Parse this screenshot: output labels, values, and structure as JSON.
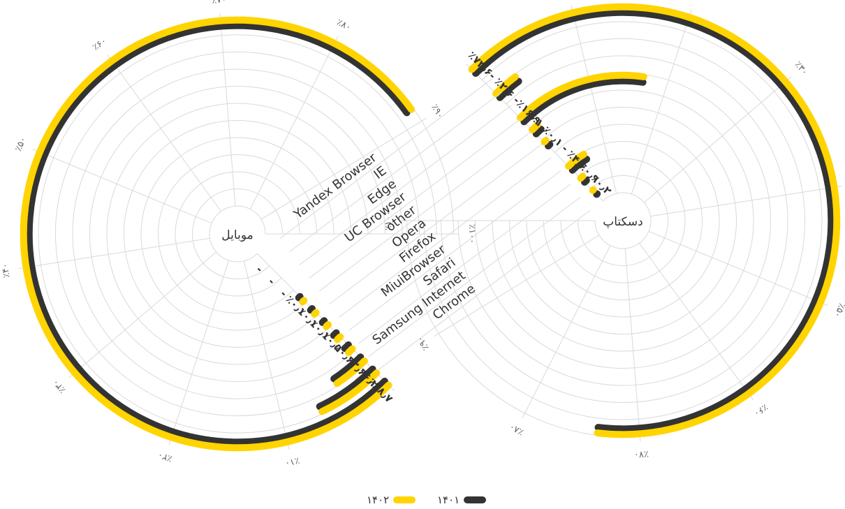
{
  "colors": {
    "year_1401": "#333333",
    "year_1402": "#ffd400",
    "grid": "#d9d9d9",
    "text": "#333333"
  },
  "legend": [
    {
      "label": "۱۴۰۱",
      "color": "#333333"
    },
    {
      "label": "۱۴۰۲",
      "color": "#ffd400"
    }
  ],
  "chart_data": [
    {
      "type": "radial-bar",
      "title": "موبایل",
      "axis_max": 100,
      "ticks": [
        "٪۱۰",
        "٪۲۰",
        "٪۳۰",
        "٪۴۰",
        "٪۵۰",
        "٪۶۰",
        "٪۷۰",
        "٪۸۰",
        "٪۹۰",
        "٪۱۰۰"
      ],
      "categories": [
        "Yandex Browser",
        "IE",
        "Edge",
        "UC Browser",
        "other",
        "Opera",
        "Firefox",
        "MiuiBrowser",
        "Safari",
        "Samsung Internet",
        "Chrome"
      ],
      "series": [
        {
          "name": "۱۴۰۱",
          "values": [
            0,
            0,
            0,
            0.1,
            0.1,
            0.1,
            0.5,
            0.6,
            3.6,
            6.2,
            88.7
          ]
        },
        {
          "name": "۱۴۰۲",
          "values": [
            0,
            0,
            0,
            0.1,
            0.1,
            0.1,
            0.5,
            0.6,
            3.6,
            6.2,
            88.7
          ]
        }
      ],
      "value_labels": [
        "-",
        "-",
        "-",
        "٪۰٫۱",
        "٪۰٫۱",
        "٪۰٫۱",
        "٪۰٫۵",
        "٪۰٫۶",
        "٪۳٫۶",
        "٪۶٫۲",
        "٪۸۸٫۷"
      ]
    },
    {
      "type": "radial-bar",
      "title": "دسکتاپ",
      "axis_max": 100,
      "ticks": [
        "٪۱۰",
        "٪۲۰",
        "٪۳۰",
        "٪۴۰",
        "٪۵۰",
        "٪۶۰",
        "٪۷۰",
        "٪۸۰",
        "٪۹۰",
        "٪۱۰۰"
      ],
      "categories": [
        "Yandex Browser",
        "IE",
        "Edge",
        "UC Browser",
        "other",
        "Opera",
        "Firefox",
        "MiuiBrowser",
        "Safari",
        "Samsung Internet",
        "Chrome"
      ],
      "series": [
        {
          "name": "۱۴۰۱",
          "values": [
            0.2,
            0.9,
            4.6,
            0,
            0.1,
            1.0,
            16.9,
            0,
            2.6,
            0,
            73.6
          ]
        },
        {
          "name": "۱۴۰۲",
          "values": [
            0.2,
            0.9,
            4.6,
            0,
            0.1,
            1.0,
            16.9,
            0,
            2.6,
            0,
            73.6
          ]
        }
      ],
      "value_labels": [
        "٪۰٫۲",
        "٪۰٫۹",
        "٪۴٫۶",
        "-",
        "٪۰٫۱",
        "٪۱٫۰",
        "٪۱۶٫۹",
        "-",
        "٪۲٫۶",
        "-",
        "٪۷۳٫۶"
      ]
    }
  ]
}
